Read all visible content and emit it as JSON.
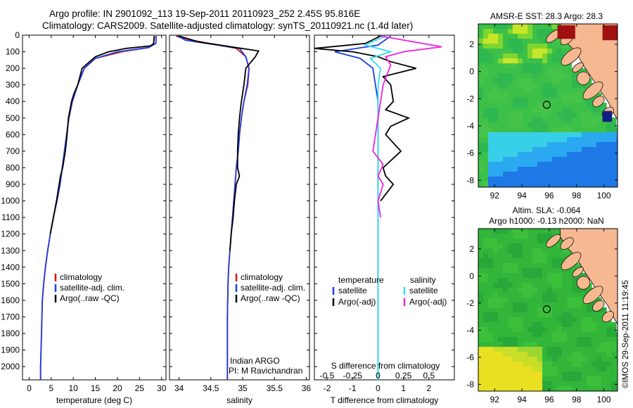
{
  "header": {
    "line1": "Argo profile: IN 2901092_113 19-Sep-2011 20110923_252 2.45S 95.816E",
    "line2": "Climatology: CARS2009. Satellite-adjusted climatology: synTS_20110921.nc (1.4d later)"
  },
  "footer_credit": "©IMOS 29-Sep-2011 11:19:45",
  "colors": {
    "climatology": "#e01010",
    "satellite": "#1a3fe0",
    "argo": "#000000",
    "satellite_salinity": "#30e0f0",
    "argo_salinity": "#f020e0",
    "land": "#f5b890"
  },
  "chart_data": [
    {
      "type": "line",
      "id": "temperature",
      "xlabel": "temperature (deg C)",
      "xlim": [
        -1.5,
        31
      ],
      "xticks": [
        0,
        5,
        10,
        15,
        20,
        25,
        30
      ],
      "ylabel": "",
      "ylim": [
        2080,
        0
      ],
      "yticks": [
        0,
        100,
        200,
        300,
        400,
        500,
        600,
        700,
        800,
        900,
        1000,
        1100,
        1200,
        1300,
        1400,
        1500,
        1600,
        1700,
        1800,
        1900,
        2000
      ],
      "legend": [
        "climatology",
        "satellite-adj. clim.",
        "Argo(..raw -QC)"
      ],
      "series": [
        {
          "name": "climatology",
          "color_key": "climatology",
          "x": [
            28.3,
            28.2,
            27,
            21,
            15,
            12.5,
            11,
            9.8,
            9,
            8.5,
            8,
            7.5,
            7,
            6.3,
            5.5,
            4.8,
            4.2,
            3.7,
            3.3,
            3.0,
            2.8,
            2.6,
            2.6
          ],
          "y": [
            5,
            50,
            75,
            100,
            140,
            200,
            300,
            400,
            500,
            600,
            700,
            800,
            900,
            1000,
            1100,
            1200,
            1300,
            1400,
            1500,
            1600,
            1800,
            2000,
            2080
          ]
        },
        {
          "name": "satellite-adj. clim.",
          "color_key": "satellite",
          "x": [
            28.8,
            28.7,
            27,
            20,
            15,
            12.5,
            11,
            9.8,
            9,
            8.5,
            8,
            7.5,
            7,
            6.3,
            5.5,
            4.8,
            4.2,
            3.7,
            3.3,
            3.0,
            2.8,
            2.6,
            2.6
          ],
          "y": [
            5,
            50,
            75,
            100,
            140,
            200,
            300,
            400,
            500,
            600,
            700,
            800,
            900,
            1000,
            1100,
            1200,
            1300,
            1400,
            1500,
            1600,
            1800,
            2000,
            2080
          ]
        },
        {
          "name": "Argo(..raw -QC)",
          "color_key": "argo",
          "x": [
            28.4,
            28.2,
            27.5,
            22,
            18,
            15,
            12,
            11,
            10.2,
            9.6,
            8.9,
            8.6,
            8.2,
            7.6,
            7.1,
            6.8,
            6.2,
            5.5,
            4.8
          ],
          "y": [
            5,
            50,
            65,
            80,
            100,
            130,
            200,
            300,
            350,
            400,
            500,
            600,
            700,
            800,
            850,
            900,
            1000,
            1100,
            1200
          ]
        }
      ]
    },
    {
      "type": "line",
      "id": "salinity",
      "xlabel": "salinity",
      "xlim": [
        33.85,
        36.05
      ],
      "xticks": [
        34,
        34.5,
        35,
        35.5,
        36
      ],
      "ylim": [
        2080,
        0
      ],
      "legend": [
        "climatology",
        "satellite-adj. clim.",
        "Argo(..raw -QC)"
      ],
      "annotation": [
        "Indian ARGO",
        "PI: M Ravichandran"
      ],
      "series": [
        {
          "name": "climatology",
          "color_key": "climatology",
          "x": [
            33.95,
            34.2,
            34.9,
            35.05,
            35.1,
            35.08,
            35.02,
            34.98,
            34.95,
            34.93,
            34.9,
            34.88,
            34.86,
            34.84,
            34.82,
            34.8,
            34.78,
            34.77,
            34.76,
            34.76,
            34.76
          ],
          "y": [
            5,
            30,
            80,
            130,
            200,
            300,
            400,
            500,
            600,
            700,
            800,
            900,
            1000,
            1100,
            1200,
            1300,
            1400,
            1500,
            1700,
            1900,
            2080
          ]
        },
        {
          "name": "satellite-adj. clim.",
          "color_key": "satellite",
          "x": [
            33.98,
            34.1,
            34.95,
            35.05,
            35.1,
            35.07,
            35.02,
            34.98,
            34.95,
            34.93,
            34.9,
            34.88,
            34.86,
            34.84,
            34.82,
            34.8,
            34.78,
            34.77,
            34.76,
            34.76,
            34.76
          ],
          "y": [
            5,
            30,
            80,
            130,
            200,
            300,
            400,
            500,
            600,
            700,
            800,
            900,
            1000,
            1100,
            1200,
            1300,
            1400,
            1500,
            1700,
            1900,
            2080
          ]
        },
        {
          "name": "Argo(..raw -QC)",
          "color_key": "argo",
          "x": [
            34.0,
            34.3,
            34.9,
            35.25,
            35.2,
            35.05,
            35.02,
            34.98,
            34.95,
            34.93,
            34.92,
            34.92,
            34.95,
            34.9,
            34.87,
            34.85,
            34.82,
            34.8
          ],
          "y": [
            5,
            40,
            75,
            95,
            130,
            200,
            300,
            400,
            500,
            600,
            700,
            800,
            850,
            900,
            1000,
            1100,
            1200,
            1300
          ]
        }
      ]
    },
    {
      "type": "line",
      "id": "differences",
      "xlabel": "T difference from climatology",
      "xlim": [
        -2.5,
        3.0
      ],
      "xticks": [
        -2,
        -1,
        0,
        1,
        2
      ],
      "top_label": "S difference from climatology",
      "top_ticks": [
        {
          "x": -2,
          "label": "-0.5"
        },
        {
          "x": -1,
          "label": "-0.25"
        },
        {
          "x": 0,
          "label": "0"
        },
        {
          "x": 1,
          "label": "0.25"
        },
        {
          "x": 2,
          "label": "0.5"
        }
      ],
      "ylim": [
        2080,
        0
      ],
      "legend_temperature": {
        "heading": "temperature",
        "items": [
          "satellite",
          "Argo(-adj)"
        ]
      },
      "legend_salinity": {
        "heading": "salinity",
        "items": [
          "satellite",
          "Argo(-adj)"
        ]
      },
      "series": [
        {
          "name": "temperature satellite",
          "color_key": "satellite",
          "x": [
            0.5,
            0,
            -1.7,
            -0.7,
            -0.2,
            -0.1,
            0,
            0,
            0,
            0,
            0,
            0,
            0,
            0
          ],
          "y": [
            5,
            60,
            100,
            140,
            200,
            300,
            400,
            600,
            800,
            1000,
            1200,
            1500,
            1800,
            2080
          ]
        },
        {
          "name": "temperature Argo(-adj)",
          "color_key": "argo",
          "x": [
            0.1,
            -0.5,
            -2.5,
            -1,
            0,
            0.5,
            1.5,
            0.2,
            0.5,
            0.6,
            0.3,
            1.2,
            0.5,
            0.3,
            0.9,
            0.2,
            0.3,
            0.6,
            0.1
          ],
          "y": [
            5,
            50,
            80,
            100,
            130,
            160,
            200,
            250,
            300,
            400,
            450,
            500,
            550,
            600,
            700,
            800,
            850,
            900,
            1000
          ]
        },
        {
          "name": "salinity satellite",
          "color_key": "satellite_salinity",
          "x": [
            0.3,
            -0.5,
            0.5,
            -0.3,
            0.1,
            0,
            0,
            0,
            0,
            0,
            0,
            0
          ],
          "y": [
            5,
            60,
            100,
            140,
            200,
            300,
            500,
            800,
            1100,
            1500,
            1800,
            2080
          ]
        },
        {
          "name": "salinity Argo(-adj)",
          "color_key": "argo_salinity",
          "x": [
            0.1,
            2.5,
            1.0,
            0.3,
            0.5,
            0.2,
            0,
            -0.2,
            0.2,
            0,
            0.2,
            0,
            0.1
          ],
          "y": [
            5,
            70,
            100,
            130,
            180,
            300,
            500,
            700,
            780,
            850,
            900,
            1000,
            1100
          ]
        }
      ]
    },
    {
      "type": "heatmap",
      "id": "sst_map",
      "title": "AMSR-E SST: 28.3 Argo: 28.3",
      "xlim": [
        90.8,
        101.0
      ],
      "ylim": [
        -8.5,
        3.5
      ],
      "xticks": [
        92,
        94,
        96,
        98,
        100
      ],
      "yticks": [
        2,
        0,
        -2,
        -4,
        -6,
        -8
      ],
      "marker": {
        "lon": 95.816,
        "lat": -2.45
      }
    },
    {
      "type": "heatmap",
      "id": "sla_map",
      "title": "Altim. SLA: -0.064",
      "subtitle": "Argo h1000: -0.13 h2000: NaN",
      "xlim": [
        90.8,
        101.0
      ],
      "ylim": [
        -8.5,
        3.5
      ],
      "xticks": [
        92,
        94,
        96,
        98,
        100
      ],
      "yticks": [
        2,
        0,
        -2,
        -4,
        -6,
        -8
      ],
      "marker": {
        "lon": 95.816,
        "lat": -2.45
      }
    }
  ]
}
